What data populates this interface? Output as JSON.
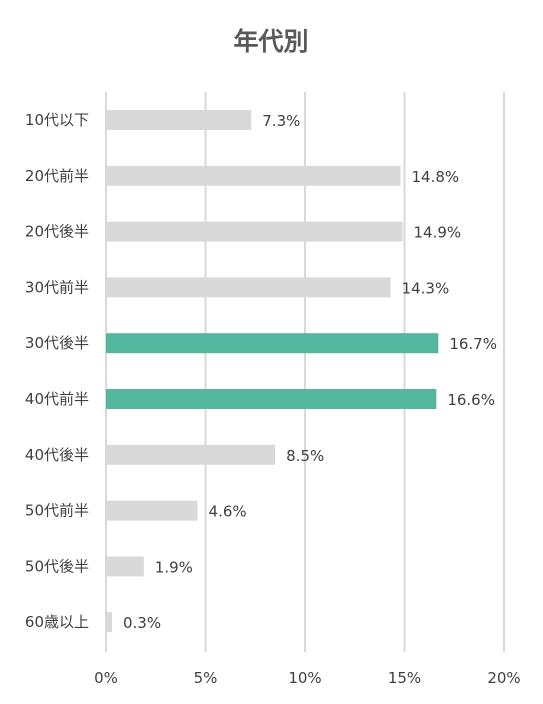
{
  "chart_data": {
    "type": "bar",
    "orientation": "horizontal",
    "title": "年代別",
    "categories": [
      "10代以下",
      "20代前半",
      "20代後半",
      "30代前半",
      "30代後半",
      "40代前半",
      "40代後半",
      "50代前半",
      "50代後半",
      "60歳以上"
    ],
    "values": [
      7.3,
      14.8,
      14.9,
      14.3,
      16.7,
      16.6,
      8.5,
      4.6,
      1.9,
      0.3
    ],
    "value_labels": [
      "7.3%",
      "14.8%",
      "14.9%",
      "14.3%",
      "16.7%",
      "16.6%",
      "8.5%",
      "4.6%",
      "1.9%",
      "0.3%"
    ],
    "highlighted": [
      false,
      false,
      false,
      false,
      true,
      true,
      false,
      false,
      false,
      false
    ],
    "xlim": [
      0,
      20
    ],
    "x_ticks": [
      0,
      5,
      10,
      15,
      20
    ],
    "x_tick_labels": [
      "0%",
      "5%",
      "10%",
      "15%",
      "20%"
    ],
    "grid": "vertical",
    "legend": "none",
    "colors": {
      "bar": "#d9d9d9",
      "highlight": "#52b79c",
      "grid": "#d9d9d9",
      "text": "#404040",
      "title": "#595959"
    }
  }
}
